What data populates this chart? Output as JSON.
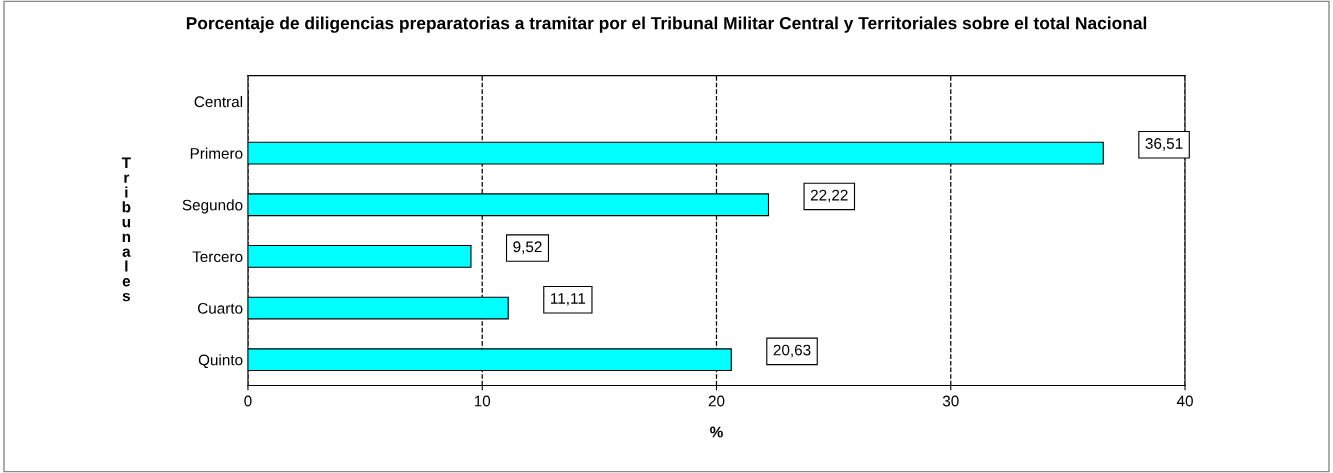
{
  "chart_data": {
    "type": "bar",
    "orientation": "horizontal",
    "title": "Porcentaje de diligencias preparatorias a tramitar por el Tribunal Militar Central y Territoriales sobre el total Nacional",
    "xlabel": "%",
    "ylabel": "Tribunales",
    "categories": [
      "Central",
      "Primero",
      "Segundo",
      "Tercero",
      "Cuarto",
      "Quinto"
    ],
    "values": [
      0,
      36.51,
      22.22,
      9.52,
      11.11,
      20.63
    ],
    "value_labels": [
      null,
      "36,51",
      "22,22",
      "9,52",
      "11,11",
      "20,63"
    ],
    "color": "#00ffff",
    "xlim": [
      0,
      40
    ],
    "xticks": [
      0,
      10,
      20,
      30,
      40
    ],
    "grid": "x",
    "line_style": "dashed"
  }
}
